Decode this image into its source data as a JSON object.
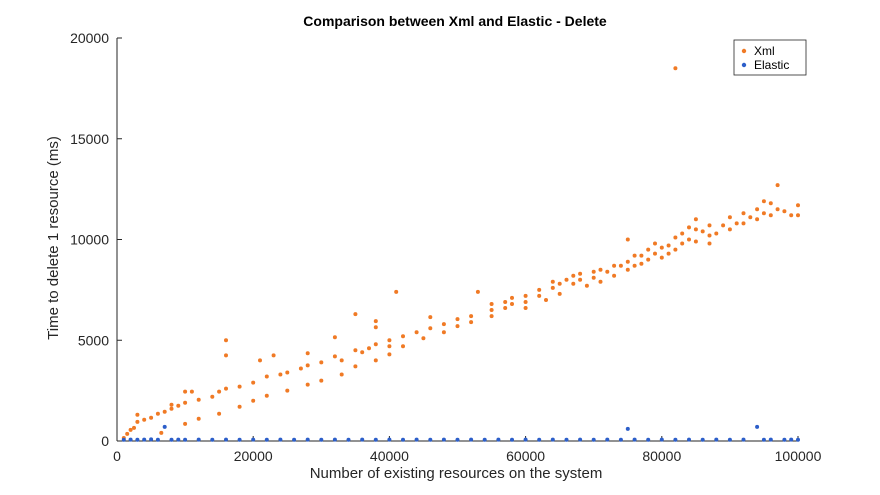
{
  "chart_data": {
    "type": "scatter",
    "title": "Comparison between Xml and Elastic - Delete",
    "xlabel": "Number of existing resources on the system",
    "ylabel": "Time to delete 1 resource (ms)",
    "xlim": [
      0,
      100000
    ],
    "ylim": [
      0,
      20000
    ],
    "xticks": [
      0,
      20000,
      40000,
      60000,
      80000,
      100000
    ],
    "yticks": [
      0,
      5000,
      10000,
      15000,
      20000
    ],
    "grid": false,
    "legend_position": "top-right",
    "series": [
      {
        "name": "Xml",
        "color": "#f07a25",
        "points": [
          [
            1000,
            150
          ],
          [
            1500,
            350
          ],
          [
            2000,
            550
          ],
          [
            2500,
            650
          ],
          [
            3000,
            1300
          ],
          [
            3000,
            950
          ],
          [
            4000,
            1050
          ],
          [
            5000,
            1150
          ],
          [
            6000,
            1350
          ],
          [
            6500,
            400
          ],
          [
            7000,
            1450
          ],
          [
            8000,
            1800
          ],
          [
            8000,
            1600
          ],
          [
            9000,
            1750
          ],
          [
            10000,
            2450
          ],
          [
            10000,
            1900
          ],
          [
            10000,
            850
          ],
          [
            11000,
            2450
          ],
          [
            12000,
            2050
          ],
          [
            12000,
            1100
          ],
          [
            14000,
            2200
          ],
          [
            15000,
            2450
          ],
          [
            15000,
            1350
          ],
          [
            16000,
            5000
          ],
          [
            16000,
            4250
          ],
          [
            16000,
            2600
          ],
          [
            18000,
            2700
          ],
          [
            18000,
            1700
          ],
          [
            20000,
            2900
          ],
          [
            20000,
            2000
          ],
          [
            21000,
            4000
          ],
          [
            22000,
            3200
          ],
          [
            22000,
            2250
          ],
          [
            23000,
            4250
          ],
          [
            24000,
            3300
          ],
          [
            25000,
            3400
          ],
          [
            25000,
            2500
          ],
          [
            27000,
            3600
          ],
          [
            28000,
            4350
          ],
          [
            28000,
            3750
          ],
          [
            28000,
            2800
          ],
          [
            30000,
            3900
          ],
          [
            30000,
            3000
          ],
          [
            32000,
            5150
          ],
          [
            32000,
            4200
          ],
          [
            33000,
            4000
          ],
          [
            33000,
            3300
          ],
          [
            35000,
            6300
          ],
          [
            35000,
            4500
          ],
          [
            35000,
            3700
          ],
          [
            36000,
            4400
          ],
          [
            37000,
            4600
          ],
          [
            38000,
            5950
          ],
          [
            38000,
            5650
          ],
          [
            38000,
            4800
          ],
          [
            38000,
            4000
          ],
          [
            40000,
            5000
          ],
          [
            40000,
            4700
          ],
          [
            40000,
            4300
          ],
          [
            41000,
            7400
          ],
          [
            42000,
            5200
          ],
          [
            42000,
            4700
          ],
          [
            44000,
            5400
          ],
          [
            45000,
            5100
          ],
          [
            46000,
            6150
          ],
          [
            46000,
            5600
          ],
          [
            48000,
            5800
          ],
          [
            48000,
            5400
          ],
          [
            50000,
            6050
          ],
          [
            50000,
            5700
          ],
          [
            52000,
            6200
          ],
          [
            52000,
            5900
          ],
          [
            53000,
            7400
          ],
          [
            55000,
            6800
          ],
          [
            55000,
            6500
          ],
          [
            55000,
            6200
          ],
          [
            57000,
            6900
          ],
          [
            57000,
            6600
          ],
          [
            58000,
            7100
          ],
          [
            58000,
            6800
          ],
          [
            60000,
            7200
          ],
          [
            60000,
            6900
          ],
          [
            60000,
            6600
          ],
          [
            62000,
            7500
          ],
          [
            62000,
            7200
          ],
          [
            63000,
            7000
          ],
          [
            64000,
            7900
          ],
          [
            64000,
            7600
          ],
          [
            65000,
            7800
          ],
          [
            65000,
            7300
          ],
          [
            66000,
            8000
          ],
          [
            67000,
            8200
          ],
          [
            67000,
            7800
          ],
          [
            68000,
            8300
          ],
          [
            68000,
            8000
          ],
          [
            69000,
            7700
          ],
          [
            70000,
            8400
          ],
          [
            70000,
            8100
          ],
          [
            71000,
            8500
          ],
          [
            71000,
            7900
          ],
          [
            72000,
            8400
          ],
          [
            73000,
            8700
          ],
          [
            73000,
            8200
          ],
          [
            74000,
            8700
          ],
          [
            75000,
            10000
          ],
          [
            75000,
            8900
          ],
          [
            75000,
            8500
          ],
          [
            76000,
            9200
          ],
          [
            76000,
            8700
          ],
          [
            77000,
            9200
          ],
          [
            77000,
            8800
          ],
          [
            78000,
            9500
          ],
          [
            78000,
            9000
          ],
          [
            79000,
            9800
          ],
          [
            79000,
            9300
          ],
          [
            80000,
            9600
          ],
          [
            80000,
            9100
          ],
          [
            81000,
            9700
          ],
          [
            81000,
            9300
          ],
          [
            82000,
            18500
          ],
          [
            82000,
            10100
          ],
          [
            82000,
            9500
          ],
          [
            83000,
            10300
          ],
          [
            83000,
            9800
          ],
          [
            84000,
            10600
          ],
          [
            84000,
            10000
          ],
          [
            85000,
            11000
          ],
          [
            85000,
            10500
          ],
          [
            85000,
            9900
          ],
          [
            86000,
            10400
          ],
          [
            87000,
            10700
          ],
          [
            87000,
            10200
          ],
          [
            87000,
            9800
          ],
          [
            88000,
            10300
          ],
          [
            89000,
            10700
          ],
          [
            90000,
            11100
          ],
          [
            90000,
            10500
          ],
          [
            91000,
            10800
          ],
          [
            92000,
            11300
          ],
          [
            92000,
            10800
          ],
          [
            93000,
            11100
          ],
          [
            94000,
            11500
          ],
          [
            94000,
            11000
          ],
          [
            95000,
            11900
          ],
          [
            95000,
            11300
          ],
          [
            96000,
            11800
          ],
          [
            96000,
            11200
          ],
          [
            97000,
            12700
          ],
          [
            97000,
            11500
          ],
          [
            98000,
            11400
          ],
          [
            99000,
            11200
          ],
          [
            100000,
            11700
          ],
          [
            100000,
            11200
          ]
        ]
      },
      {
        "name": "Elastic",
        "color": "#2c5ec9",
        "points": [
          [
            1000,
            60
          ],
          [
            2000,
            70
          ],
          [
            3000,
            60
          ],
          [
            4000,
            70
          ],
          [
            5000,
            80
          ],
          [
            6000,
            60
          ],
          [
            7000,
            700
          ],
          [
            8000,
            60
          ],
          [
            9000,
            70
          ],
          [
            10000,
            60
          ],
          [
            12000,
            70
          ],
          [
            14000,
            60
          ],
          [
            16000,
            70
          ],
          [
            18000,
            60
          ],
          [
            20000,
            70
          ],
          [
            22000,
            60
          ],
          [
            24000,
            70
          ],
          [
            26000,
            60
          ],
          [
            28000,
            70
          ],
          [
            30000,
            60
          ],
          [
            32000,
            70
          ],
          [
            34000,
            60
          ],
          [
            36000,
            70
          ],
          [
            38000,
            60
          ],
          [
            40000,
            70
          ],
          [
            42000,
            60
          ],
          [
            44000,
            70
          ],
          [
            46000,
            60
          ],
          [
            48000,
            70
          ],
          [
            50000,
            60
          ],
          [
            52000,
            70
          ],
          [
            54000,
            60
          ],
          [
            56000,
            70
          ],
          [
            58000,
            60
          ],
          [
            60000,
            70
          ],
          [
            62000,
            60
          ],
          [
            64000,
            70
          ],
          [
            66000,
            60
          ],
          [
            68000,
            70
          ],
          [
            70000,
            60
          ],
          [
            72000,
            70
          ],
          [
            74000,
            60
          ],
          [
            75000,
            600
          ],
          [
            76000,
            70
          ],
          [
            78000,
            60
          ],
          [
            80000,
            70
          ],
          [
            82000,
            60
          ],
          [
            84000,
            70
          ],
          [
            86000,
            60
          ],
          [
            88000,
            70
          ],
          [
            90000,
            60
          ],
          [
            92000,
            70
          ],
          [
            94000,
            700
          ],
          [
            95000,
            60
          ],
          [
            96000,
            70
          ],
          [
            98000,
            60
          ],
          [
            99000,
            70
          ],
          [
            100000,
            60
          ]
        ]
      }
    ]
  }
}
